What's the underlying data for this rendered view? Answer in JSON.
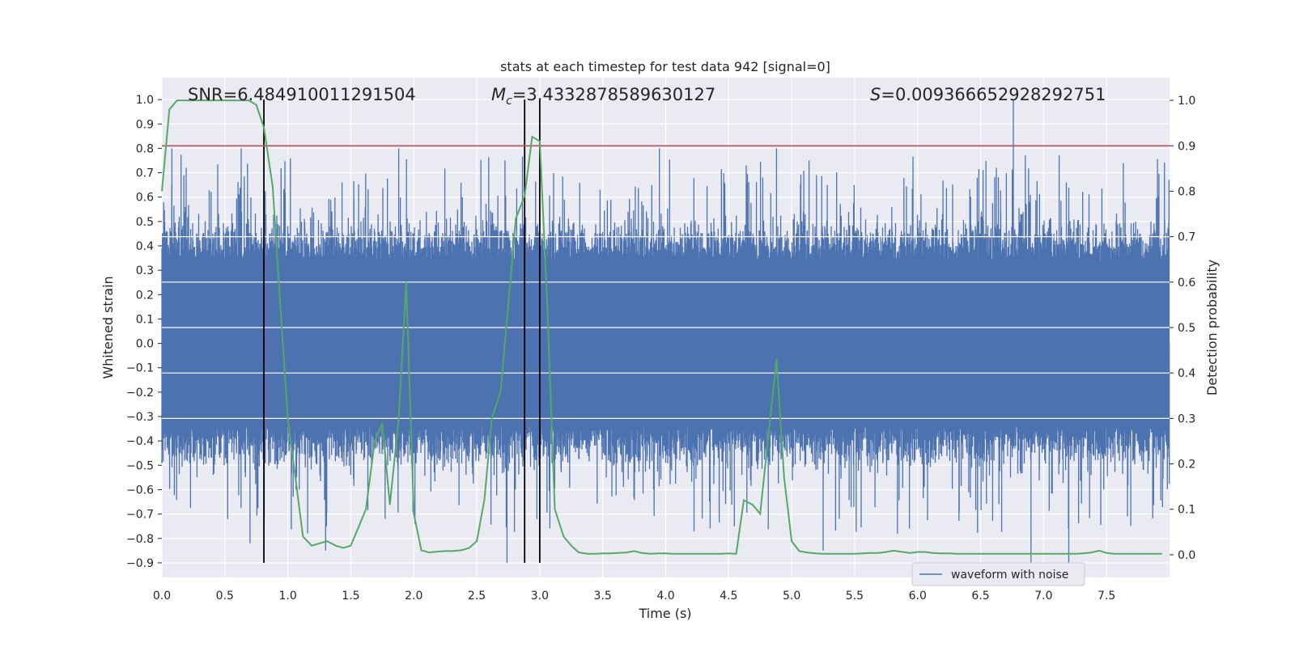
{
  "chart_data": {
    "type": "line",
    "title": "stats at each timestep for test data 942 [signal=0]",
    "xlabel": "Time (s)",
    "ylabel": "Whitened strain",
    "y2label": "Detection probability",
    "xlim": [
      0.0,
      8.0
    ],
    "ylim": [
      -0.96,
      1.09
    ],
    "y2lim": [
      -0.05,
      1.05
    ],
    "x_ticks": [
      "0.0",
      "0.5",
      "1.0",
      "1.5",
      "2.0",
      "2.5",
      "3.0",
      "3.5",
      "4.0",
      "4.5",
      "5.0",
      "5.5",
      "6.0",
      "6.5",
      "7.0",
      "7.5"
    ],
    "y_ticks": [
      "1.0",
      "0.9",
      "0.8",
      "0.7",
      "0.6",
      "0.5",
      "0.4",
      "0.3",
      "0.2",
      "0.1",
      "0.0",
      "−0.1",
      "−0.2",
      "−0.3",
      "−0.4",
      "−0.5",
      "−0.6",
      "−0.7",
      "−0.8",
      "−0.9"
    ],
    "y2_ticks": [
      "1.0",
      "0.9",
      "0.8",
      "0.7",
      "0.6",
      "0.5",
      "0.4",
      "0.3",
      "0.2",
      "0.1",
      "0.0"
    ],
    "grid": true,
    "legend_position": "lower-right",
    "annotations": {
      "snr_label": "SNR=6.484910011291504",
      "mc_label_prefix": "M",
      "mc_label_sub": "c",
      "mc_label_value": "=3.4332878589630127",
      "s_label_prefix": "S",
      "s_label_value": "=0.009366652928292751"
    },
    "series": [
      {
        "name": "waveform with noise",
        "color": "#4c72b0",
        "axis": "left",
        "style": "dense noise trace",
        "x_range": [
          0.0,
          8.0
        ],
        "typical_envelope": [
          -0.45,
          0.45
        ],
        "notable_spikes": [
          {
            "x": 0.08,
            "y": 0.8
          },
          {
            "x": 0.63,
            "y": 0.8
          },
          {
            "x": 1.88,
            "y": 0.8
          },
          {
            "x": 3.0,
            "y": 0.8
          },
          {
            "x": 3.95,
            "y": 0.8
          },
          {
            "x": 4.88,
            "y": 0.8
          },
          {
            "x": 6.76,
            "y": 1.0
          },
          {
            "x": 6.9,
            "y": -0.95
          },
          {
            "x": 7.2,
            "y": -0.95
          },
          {
            "x": 2.74,
            "y": -0.9
          },
          {
            "x": 5.25,
            "y": -0.85
          },
          {
            "x": 1.3,
            "y": -0.85
          },
          {
            "x": 0.7,
            "y": -0.82
          },
          {
            "x": 5.84,
            "y": -0.78
          }
        ]
      },
      {
        "name": "detection probability",
        "color": "#55a868",
        "axis": "right",
        "x": [
          0.0,
          0.06,
          0.12,
          0.19,
          0.25,
          0.31,
          0.38,
          0.44,
          0.5,
          0.56,
          0.62,
          0.69,
          0.75,
          0.81,
          0.88,
          0.94,
          1.0,
          1.06,
          1.12,
          1.19,
          1.25,
          1.31,
          1.38,
          1.44,
          1.5,
          1.56,
          1.62,
          1.69,
          1.75,
          1.81,
          1.88,
          1.94,
          2.0,
          2.06,
          2.12,
          2.19,
          2.25,
          2.31,
          2.38,
          2.44,
          2.5,
          2.56,
          2.62,
          2.69,
          2.75,
          2.81,
          2.88,
          2.94,
          3.0,
          3.06,
          3.12,
          3.19,
          3.25,
          3.31,
          3.38,
          3.44,
          3.5,
          3.56,
          3.62,
          3.69,
          3.75,
          3.81,
          3.88,
          3.94,
          4.0,
          4.06,
          4.12,
          4.19,
          4.25,
          4.31,
          4.38,
          4.44,
          4.5,
          4.56,
          4.62,
          4.69,
          4.75,
          4.81,
          4.88,
          4.94,
          5.0,
          5.06,
          5.12,
          5.19,
          5.25,
          5.31,
          5.38,
          5.44,
          5.5,
          5.56,
          5.62,
          5.69,
          5.75,
          5.81,
          5.88,
          5.94,
          6.0,
          6.06,
          6.12,
          6.19,
          6.25,
          6.31,
          6.38,
          6.44,
          6.5,
          6.56,
          6.62,
          6.69,
          6.75,
          6.81,
          6.88,
          6.94,
          7.0,
          7.06,
          7.12,
          7.19,
          7.25,
          7.31,
          7.38,
          7.44,
          7.5,
          7.56,
          7.62,
          7.69,
          7.75,
          7.81,
          7.88,
          7.94
        ],
        "y": [
          0.8,
          0.98,
          1.0,
          1.0,
          1.0,
          1.0,
          1.0,
          1.0,
          1.0,
          1.0,
          1.0,
          1.0,
          0.99,
          0.94,
          0.81,
          0.55,
          0.3,
          0.17,
          0.04,
          0.02,
          0.025,
          0.03,
          0.02,
          0.015,
          0.02,
          0.06,
          0.1,
          0.25,
          0.29,
          0.11,
          0.3,
          0.6,
          0.09,
          0.01,
          0.005,
          0.007,
          0.008,
          0.008,
          0.01,
          0.015,
          0.03,
          0.12,
          0.3,
          0.36,
          0.55,
          0.74,
          0.79,
          0.92,
          0.91,
          0.55,
          0.1,
          0.04,
          0.02,
          0.005,
          0.002,
          0.002,
          0.003,
          0.003,
          0.004,
          0.005,
          0.008,
          0.004,
          0.002,
          0.003,
          0.003,
          0.002,
          0.002,
          0.002,
          0.002,
          0.002,
          0.002,
          0.002,
          0.003,
          0.002,
          0.12,
          0.11,
          0.09,
          0.25,
          0.43,
          0.17,
          0.03,
          0.008,
          0.005,
          0.003,
          0.002,
          0.002,
          0.002,
          0.002,
          0.002,
          0.003,
          0.004,
          0.004,
          0.006,
          0.009,
          0.006,
          0.004,
          0.006,
          0.006,
          0.004,
          0.003,
          0.003,
          0.002,
          0.002,
          0.002,
          0.002,
          0.002,
          0.002,
          0.002,
          0.002,
          0.002,
          0.002,
          0.002,
          0.002,
          0.002,
          0.002,
          0.002,
          0.002,
          0.003,
          0.005,
          0.009,
          0.004,
          0.002,
          0.002,
          0.002,
          0.002,
          0.002,
          0.002,
          0.002
        ]
      }
    ],
    "threshold_line": {
      "axis": "right",
      "y": 0.9,
      "color": "#c44e52"
    },
    "vertical_markers": {
      "x": [
        0.81,
        2.88,
        3.0
      ],
      "y_from": -0.9,
      "y_to": 1.0,
      "color": "#000000"
    }
  }
}
